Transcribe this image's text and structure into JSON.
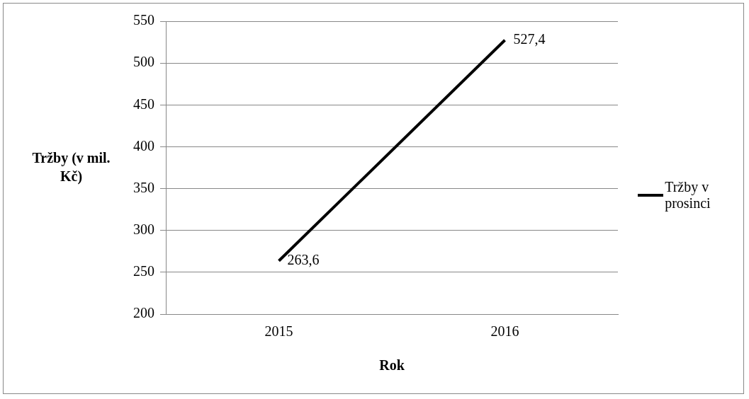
{
  "chart_data": {
    "type": "line",
    "xlabel": "Rok",
    "ylabel": "Tržby (v mil. Kč)",
    "categories": [
      "2015",
      "2016"
    ],
    "series": [
      {
        "name": "Tržby v prosinci",
        "color": "#000000",
        "values": [
          263.6,
          527.4
        ],
        "value_labels": [
          "263,6",
          "527,4"
        ]
      }
    ],
    "ylim": [
      200,
      550
    ],
    "yticks": [
      200,
      250,
      300,
      350,
      400,
      450,
      500,
      550
    ],
    "grid": "y",
    "legend": "right",
    "marker": "none",
    "line_style": "solid"
  }
}
